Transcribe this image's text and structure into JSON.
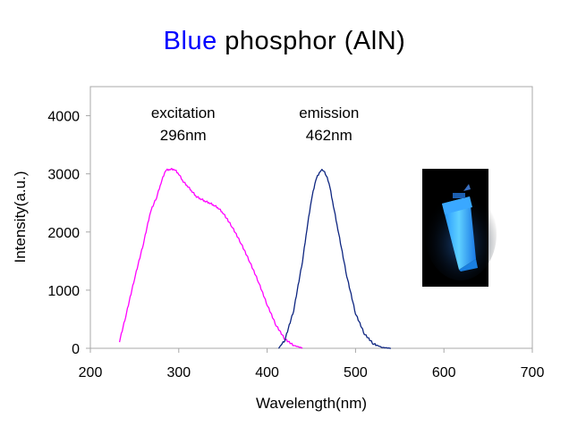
{
  "chart_data": {
    "type": "line",
    "title_highlight": "Blue",
    "title_rest": " phosphor (AlN)",
    "xlabel": "Wavelength(nm)",
    "ylabel": "Intensity(a.u.)",
    "xlim": [
      200,
      700
    ],
    "ylim": [
      0,
      4500
    ],
    "xticks": [
      200,
      300,
      400,
      500,
      600,
      700
    ],
    "yticks": [
      0,
      1000,
      2000,
      3000,
      4000
    ],
    "grid": false,
    "legend": "none",
    "series": [
      {
        "color": "#ff00ff",
        "x": [
          233,
          240,
          250,
          260,
          268,
          275,
          280,
          285,
          290,
          295,
          300,
          305,
          310,
          315,
          320,
          325,
          330,
          335,
          340,
          345,
          350,
          360,
          370,
          380,
          390,
          400,
          410,
          420,
          430,
          440
        ],
        "y": [
          120,
          550,
          1200,
          1800,
          2350,
          2600,
          2850,
          3060,
          3080,
          3080,
          3000,
          2870,
          2790,
          2700,
          2610,
          2570,
          2530,
          2500,
          2460,
          2410,
          2330,
          2100,
          1820,
          1500,
          1150,
          750,
          400,
          160,
          50,
          5
        ]
      },
      {
        "color": "#0d2580",
        "x": [
          413,
          420,
          430,
          440,
          445,
          450,
          455,
          460,
          463,
          466,
          470,
          475,
          480,
          490,
          500,
          510,
          520,
          530,
          540
        ],
        "y": [
          0,
          140,
          650,
          1500,
          2050,
          2550,
          2900,
          3050,
          3070,
          3000,
          2850,
          2450,
          2050,
          1250,
          600,
          250,
          80,
          15,
          0
        ]
      }
    ],
    "annotations": [
      {
        "line1": "excitation",
        "line2": "296nm",
        "x": 305,
        "y": 3960
      },
      {
        "line1": "emission",
        "line2": "462nm",
        "x": 470,
        "y": 3960
      }
    ]
  }
}
